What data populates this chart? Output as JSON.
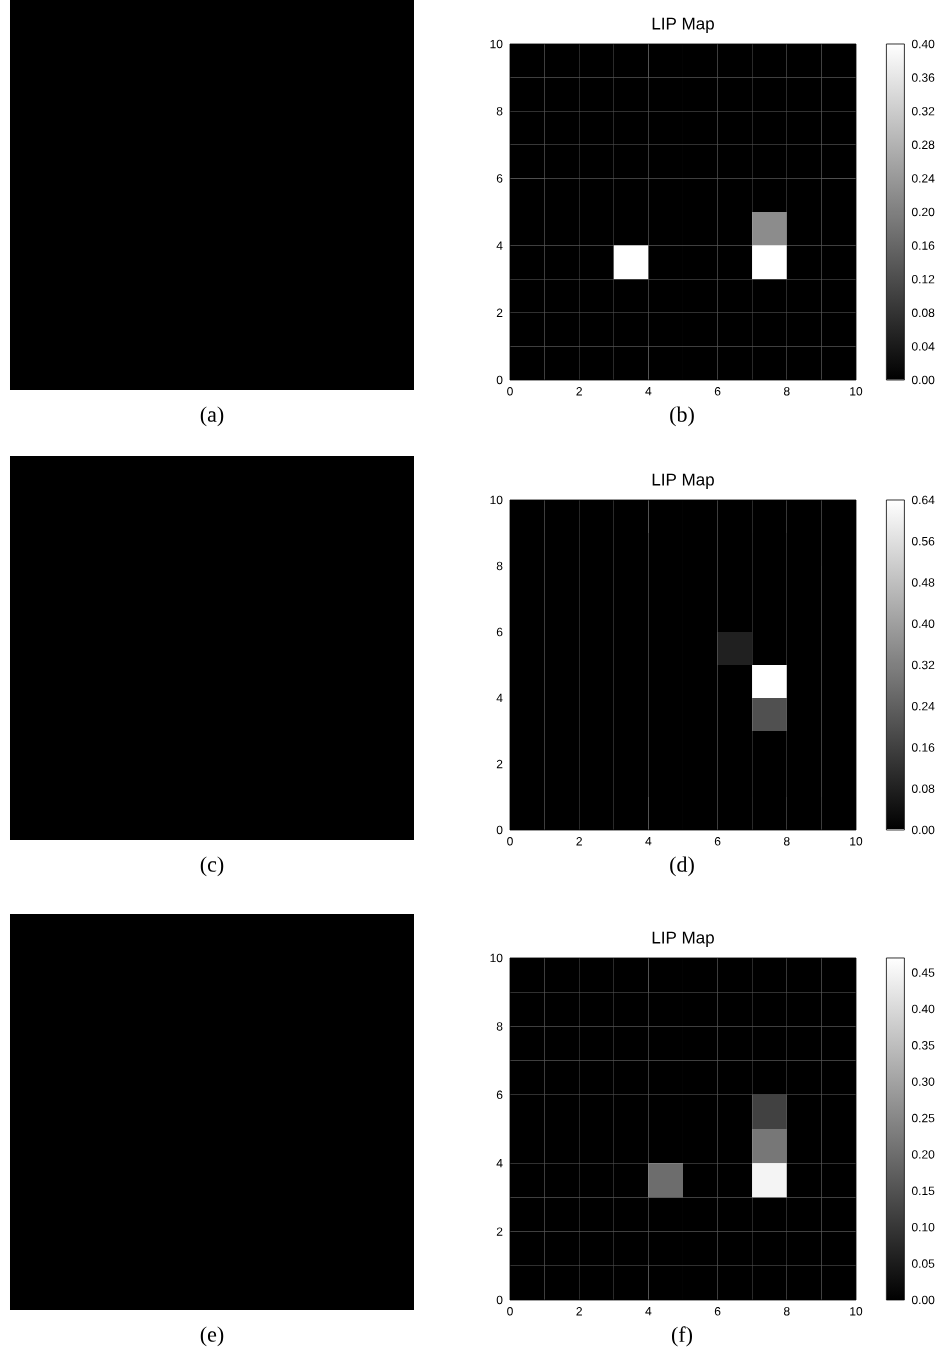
{
  "chart_data": [
    {
      "type": "other",
      "annotations": [
        "(a)"
      ]
    },
    {
      "type": "heatmap",
      "title": "LIP Map",
      "annotations": [
        "(b)"
      ],
      "xlim": [
        0,
        10
      ],
      "ylim": [
        0,
        10
      ],
      "xticks": [
        0,
        2,
        4,
        6,
        8,
        10
      ],
      "yticks": [
        0,
        2,
        4,
        6,
        8,
        10
      ],
      "cells": [
        [
          0,
          0,
          0,
          0,
          0,
          0,
          0,
          0,
          0,
          0
        ],
        [
          0,
          0,
          0,
          0,
          0,
          0,
          0,
          0,
          0,
          0
        ],
        [
          0,
          0,
          0,
          0,
          0,
          0,
          0,
          0,
          0,
          0
        ],
        [
          0,
          0,
          0,
          0,
          0,
          0,
          0,
          0,
          0,
          0
        ],
        [
          0,
          0,
          0,
          0,
          0,
          0,
          0,
          0,
          0,
          0
        ],
        [
          0,
          0,
          0,
          0,
          0,
          0,
          0,
          0.22,
          0,
          0
        ],
        [
          0,
          0,
          0,
          0.4,
          0,
          0,
          0,
          0.4,
          0,
          0
        ],
        [
          0,
          0,
          0,
          0,
          0,
          0,
          0,
          0,
          0,
          0
        ],
        [
          0,
          0,
          0,
          0,
          0,
          0,
          0,
          0,
          0,
          0
        ],
        [
          0,
          0,
          0,
          0,
          0,
          0,
          0,
          0,
          0,
          0
        ]
      ],
      "clim": [
        0,
        0.4
      ],
      "cticks": [
        {
          "value": 0,
          "label": "0.00"
        },
        {
          "value": 0.04,
          "label": "0.04"
        },
        {
          "value": 0.08,
          "label": "0.08"
        },
        {
          "value": 0.12,
          "label": "0.12"
        },
        {
          "value": 0.16,
          "label": "0.16"
        },
        {
          "value": 0.2,
          "label": "0.20"
        },
        {
          "value": 0.24,
          "label": "0.24"
        },
        {
          "value": 0.28,
          "label": "0.28"
        },
        {
          "value": 0.32,
          "label": "0.32"
        },
        {
          "value": 0.36,
          "label": "0.36"
        },
        {
          "value": 0.4,
          "label": "0.40"
        }
      ]
    },
    {
      "type": "other",
      "annotations": [
        "(c)"
      ]
    },
    {
      "type": "heatmap",
      "title": "LIP Map",
      "annotations": [
        "(d)"
      ],
      "xlim": [
        0,
        10
      ],
      "ylim": [
        0,
        10
      ],
      "xticks": [
        0,
        2,
        4,
        6,
        8,
        10
      ],
      "yticks": [
        0,
        2,
        4,
        6,
        8,
        10
      ],
      "cells": [
        [
          0,
          0,
          0,
          0,
          0,
          0,
          0,
          0,
          0,
          0
        ],
        [
          0,
          0,
          0,
          0,
          0,
          0,
          0,
          0,
          0,
          0
        ],
        [
          0,
          0,
          0,
          0,
          0,
          0,
          0,
          0,
          0,
          0
        ],
        [
          0,
          0,
          0,
          0,
          0,
          0,
          0,
          0,
          0,
          0
        ],
        [
          0,
          0,
          0,
          0,
          0,
          0,
          0.08,
          0,
          0,
          0
        ],
        [
          0,
          0,
          0,
          0,
          0,
          0,
          0,
          0.64,
          0,
          0
        ],
        [
          0,
          0,
          0,
          0,
          0,
          0,
          0,
          0.2,
          0,
          0
        ],
        [
          0,
          0,
          0,
          0,
          0,
          0,
          0,
          0,
          0,
          0
        ],
        [
          0,
          0,
          0,
          0,
          0,
          0,
          0,
          0,
          0,
          0
        ],
        [
          0,
          0,
          0,
          0,
          0,
          0,
          0,
          0,
          0,
          0
        ]
      ],
      "clim": [
        0,
        0.64
      ],
      "cticks": [
        {
          "value": 0,
          "label": "0.00"
        },
        {
          "value": 0.08,
          "label": "0.08"
        },
        {
          "value": 0.16,
          "label": "0.16"
        },
        {
          "value": 0.24,
          "label": "0.24"
        },
        {
          "value": 0.32,
          "label": "0.32"
        },
        {
          "value": 0.4,
          "label": "0.40"
        },
        {
          "value": 0.48,
          "label": "0.48"
        },
        {
          "value": 0.56,
          "label": "0.56"
        },
        {
          "value": 0.64,
          "label": "0.64"
        }
      ]
    },
    {
      "type": "other",
      "annotations": [
        "(e)"
      ]
    },
    {
      "type": "heatmap",
      "title": "LIP Map",
      "annotations": [
        "(f)"
      ],
      "xlim": [
        0,
        10
      ],
      "ylim": [
        0,
        10
      ],
      "xticks": [
        0,
        2,
        4,
        6,
        8,
        10
      ],
      "yticks": [
        0,
        2,
        4,
        6,
        8,
        10
      ],
      "cells": [
        [
          0,
          0,
          0,
          0,
          0,
          0,
          0,
          0,
          0,
          0
        ],
        [
          0,
          0,
          0,
          0,
          0,
          0,
          0,
          0,
          0,
          0
        ],
        [
          0,
          0,
          0,
          0,
          0,
          0,
          0,
          0,
          0,
          0
        ],
        [
          0,
          0,
          0,
          0,
          0,
          0,
          0,
          0,
          0,
          0
        ],
        [
          0,
          0,
          0,
          0,
          0,
          0,
          0,
          0.12,
          0,
          0
        ],
        [
          0,
          0,
          0,
          0,
          0,
          0,
          0,
          0.22,
          0,
          0
        ],
        [
          0,
          0,
          0,
          0,
          0.2,
          0,
          0,
          0.45,
          0,
          0
        ],
        [
          0,
          0,
          0,
          0,
          0,
          0,
          0,
          0,
          0,
          0
        ],
        [
          0,
          0,
          0,
          0,
          0,
          0,
          0,
          0,
          0,
          0
        ],
        [
          0,
          0,
          0,
          0,
          0,
          0,
          0,
          0,
          0,
          0
        ]
      ],
      "clim": [
        0,
        0.47
      ],
      "cticks": [
        {
          "value": 0,
          "label": "0.00"
        },
        {
          "value": 0.05,
          "label": "0.05"
        },
        {
          "value": 0.1,
          "label": "0.10"
        },
        {
          "value": 0.15,
          "label": "0.15"
        },
        {
          "value": 0.2,
          "label": "0.20"
        },
        {
          "value": 0.25,
          "label": "0.25"
        },
        {
          "value": 0.3,
          "label": "0.30"
        },
        {
          "value": 0.35,
          "label": "0.35"
        },
        {
          "value": 0.4,
          "label": "0.40"
        },
        {
          "value": 0.45,
          "label": "0.45"
        }
      ]
    }
  ]
}
